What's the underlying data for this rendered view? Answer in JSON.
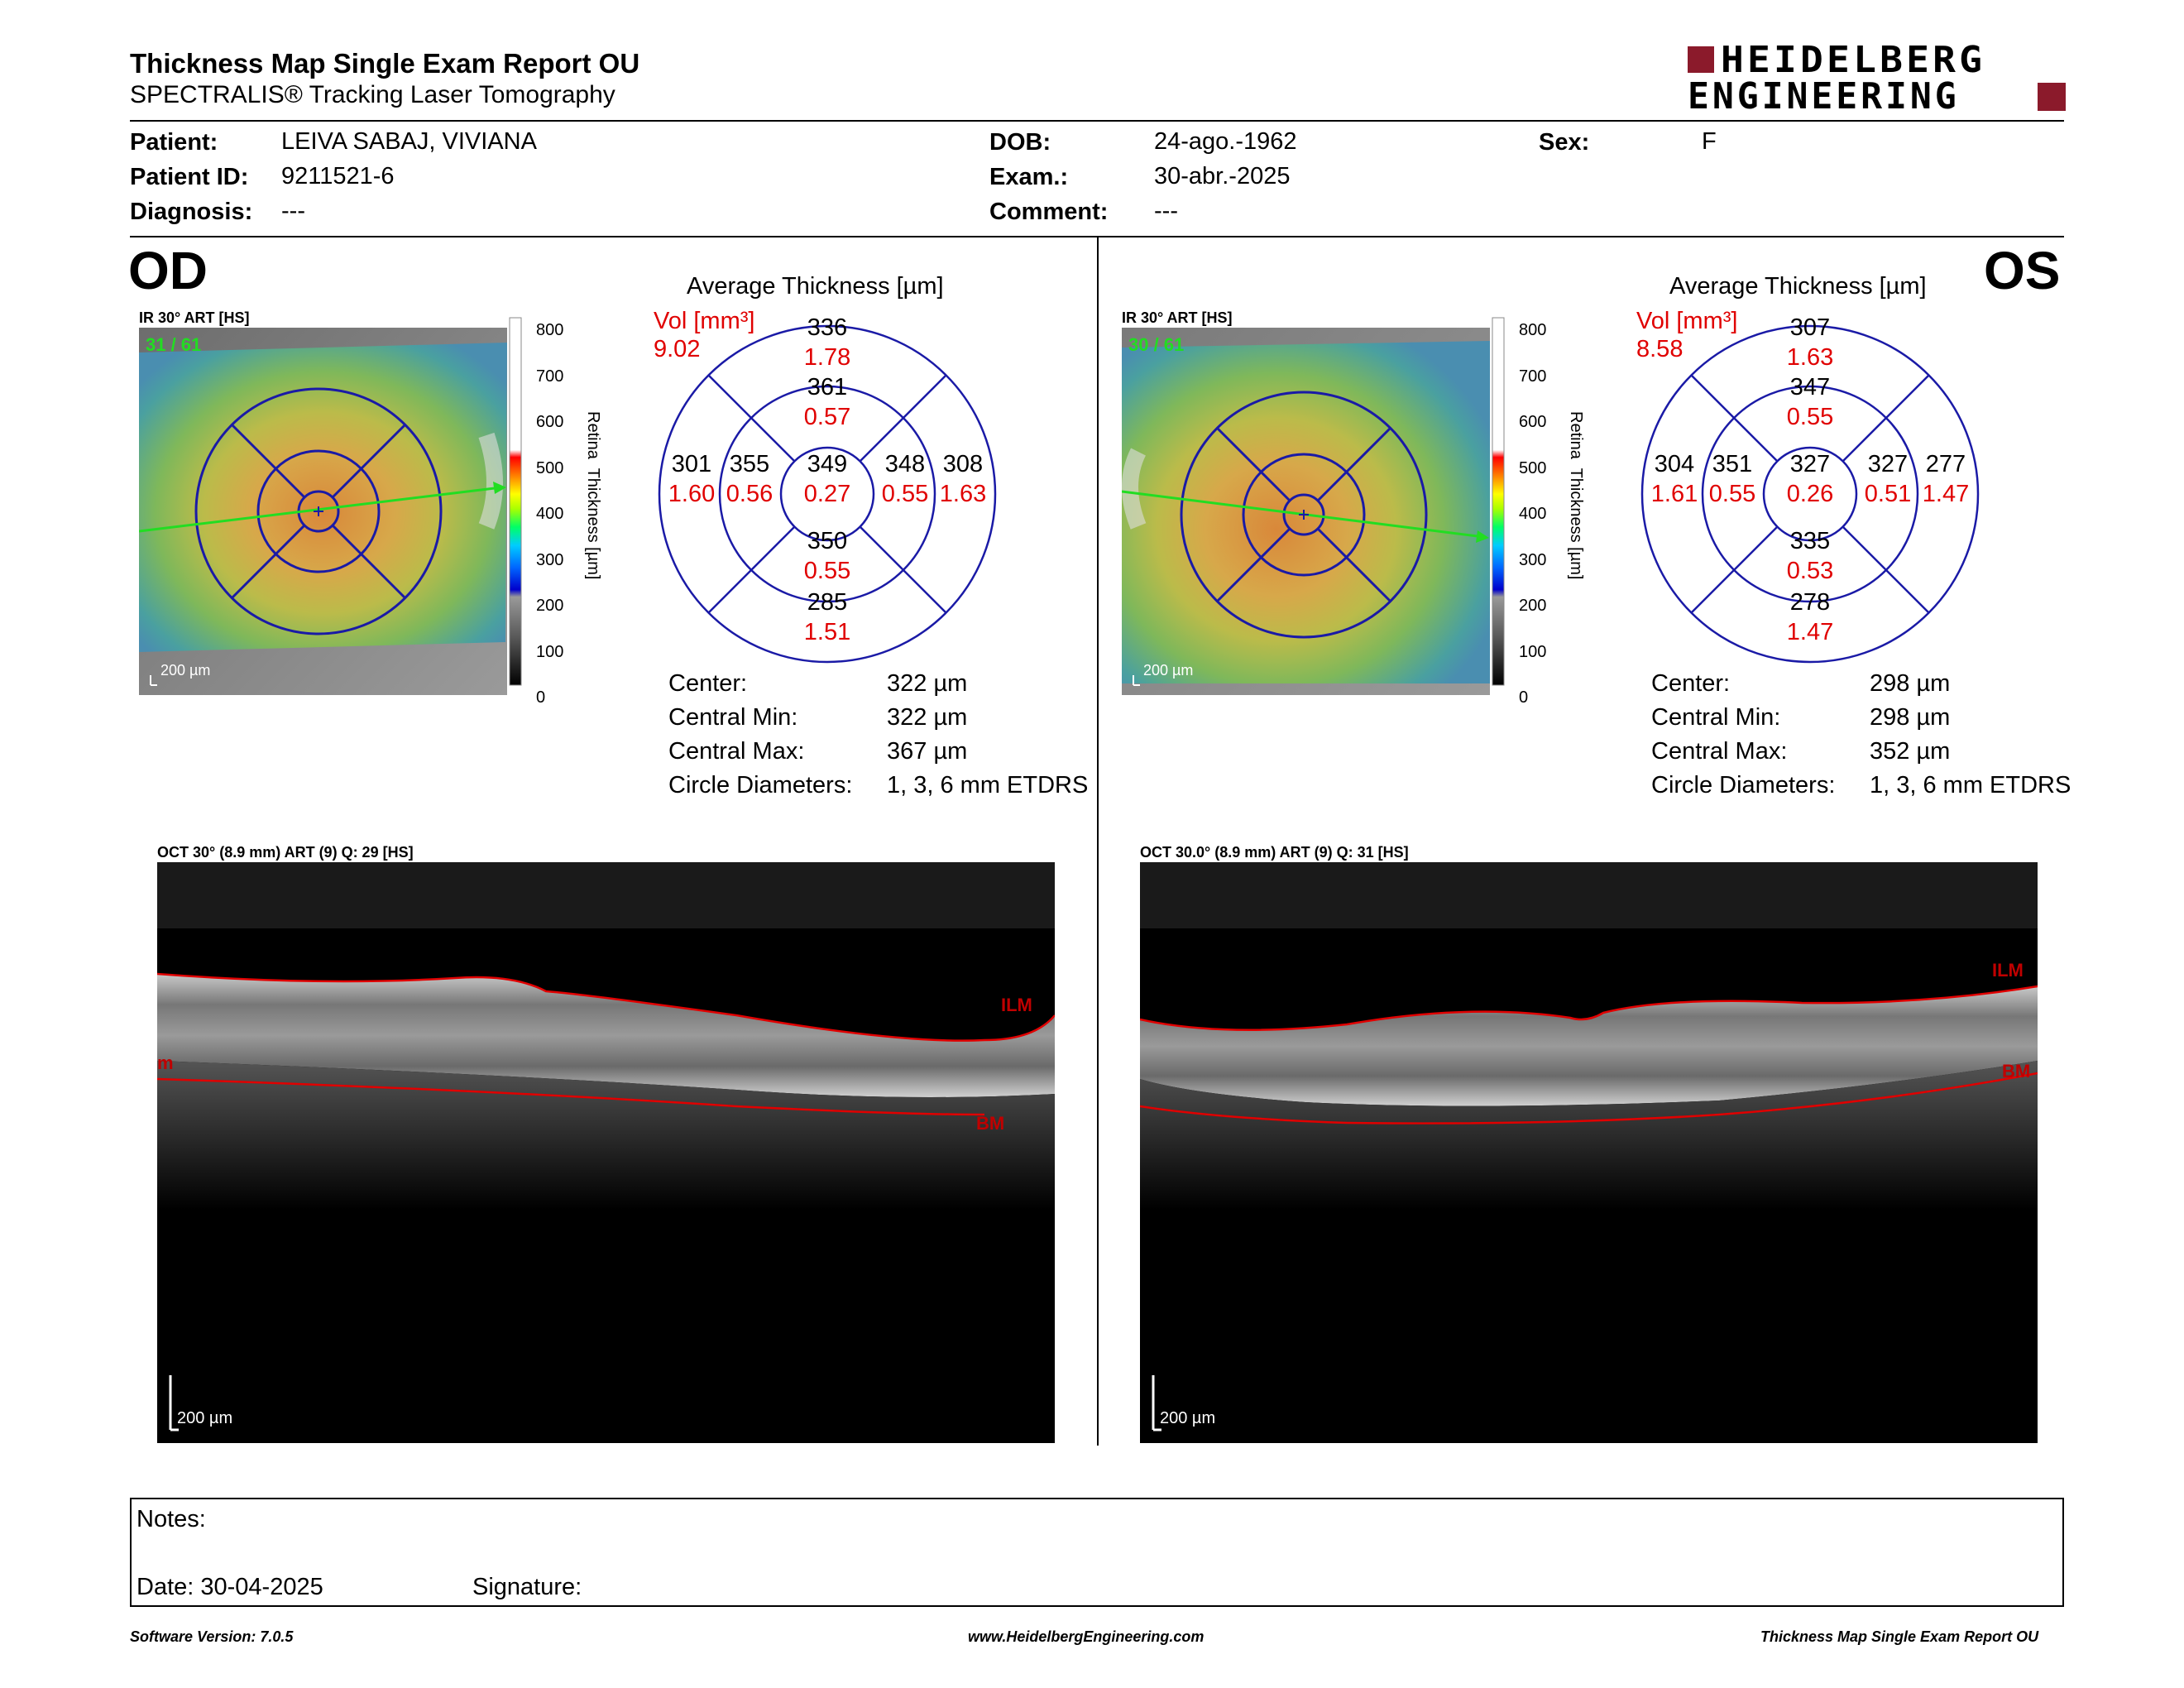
{
  "header": {
    "title": "Thickness Map Single Exam Report OU",
    "subtitle": "SPECTRALIS® Tracking Laser Tomography",
    "logo_line1": "HEIDELBERG",
    "logo_line2": "ENGINEERING",
    "logo_color": "#8b1a2b"
  },
  "patient": {
    "patient_label": "Patient:",
    "patient_value": "LEIVA SABAJ, VIVIANA",
    "id_label": "Patient ID:",
    "id_value": "9211521-6",
    "diag_label": "Diagnosis:",
    "diag_value": "---",
    "dob_label": "DOB:",
    "dob_value": "24-ago.-1962",
    "exam_label": "Exam.:",
    "exam_value": "30-abr.-2025",
    "comment_label": "Comment:",
    "comment_value": "---",
    "sex_label": "Sex:",
    "sex_value": "F"
  },
  "od": {
    "eye": "OD",
    "ir_label": "IR 30° ART [HS]",
    "frames": "31 / 61",
    "scale": "200 µm",
    "colorbar_ticks": [
      "800",
      "700",
      "600",
      "500",
      "400",
      "300",
      "200",
      "100",
      "0"
    ],
    "colorbar_label": "Retina  Thickness [µm]",
    "avg_title": "Average Thickness [µm]",
    "vol_label": "Vol [mm³]",
    "vol_value": "9.02",
    "grid": {
      "outer_top": {
        "t": "336",
        "v": "1.78"
      },
      "inner_top": {
        "t": "361",
        "v": "0.57"
      },
      "outer_left": {
        "t": "301",
        "v": "1.60"
      },
      "inner_left": {
        "t": "355",
        "v": "0.56"
      },
      "center": {
        "t": "349",
        "v": "0.27"
      },
      "inner_right": {
        "t": "348",
        "v": "0.55"
      },
      "outer_right": {
        "t": "308",
        "v": "1.63"
      },
      "inner_bottom": {
        "t": "350",
        "v": "0.55"
      },
      "outer_bottom": {
        "t": "285",
        "v": "1.51"
      }
    },
    "stats": [
      {
        "label": "Center:",
        "value": "322 µm"
      },
      {
        "label": "Central Min:",
        "value": "322 µm"
      },
      {
        "label": "Central Max:",
        "value": "367 µm"
      },
      {
        "label": "Circle Diameters:",
        "value": "1, 3, 6 mm ETDRS"
      }
    ],
    "oct_label": "OCT 30° (8.9 mm) ART (9) Q: 29 [HS]",
    "oct_scale": "200 µm",
    "ilm": "ILM",
    "bm": "BM",
    "left_tag": "m"
  },
  "os": {
    "eye": "OS",
    "ir_label": "IR 30° ART [HS]",
    "frames": "30 / 61",
    "scale": "200 µm",
    "colorbar_ticks": [
      "800",
      "700",
      "600",
      "500",
      "400",
      "300",
      "200",
      "100",
      "0"
    ],
    "colorbar_label": "Retina  Thickness [µm]",
    "avg_title": "Average Thickness [µm]",
    "vol_label": "Vol [mm³]",
    "vol_value": "8.58",
    "grid": {
      "outer_top": {
        "t": "307",
        "v": "1.63"
      },
      "inner_top": {
        "t": "347",
        "v": "0.55"
      },
      "outer_left": {
        "t": "304",
        "v": "1.61"
      },
      "inner_left": {
        "t": "351",
        "v": "0.55"
      },
      "center": {
        "t": "327",
        "v": "0.26"
      },
      "inner_right": {
        "t": "327",
        "v": "0.51"
      },
      "outer_right": {
        "t": "277",
        "v": "1.47"
      },
      "inner_bottom": {
        "t": "335",
        "v": "0.53"
      },
      "outer_bottom": {
        "t": "278",
        "v": "1.47"
      }
    },
    "stats": [
      {
        "label": "Center:",
        "value": "298 µm"
      },
      {
        "label": "Central Min:",
        "value": "298 µm"
      },
      {
        "label": "Central Max:",
        "value": "352 µm"
      },
      {
        "label": "Circle Diameters:",
        "value": "1, 3, 6 mm ETDRS"
      }
    ],
    "oct_label": "OCT 30.0° (8.9 mm) ART (9) Q: 31 [HS]",
    "oct_scale": "200 µm",
    "ilm": "ILM",
    "bm": "BM"
  },
  "notes": {
    "notes_label": "Notes:",
    "date_label": "Date: 30-04-2025",
    "signature_label": "Signature:"
  },
  "footer": {
    "version": "Software Version: 7.0.5",
    "url": "www.HeidelbergEngineering.com",
    "report": "Thickness Map Single Exam Report OU"
  },
  "colors": {
    "value_red": "#e00000",
    "grid_blue": "#1a1aa6",
    "scan_green": "#22dd22"
  }
}
